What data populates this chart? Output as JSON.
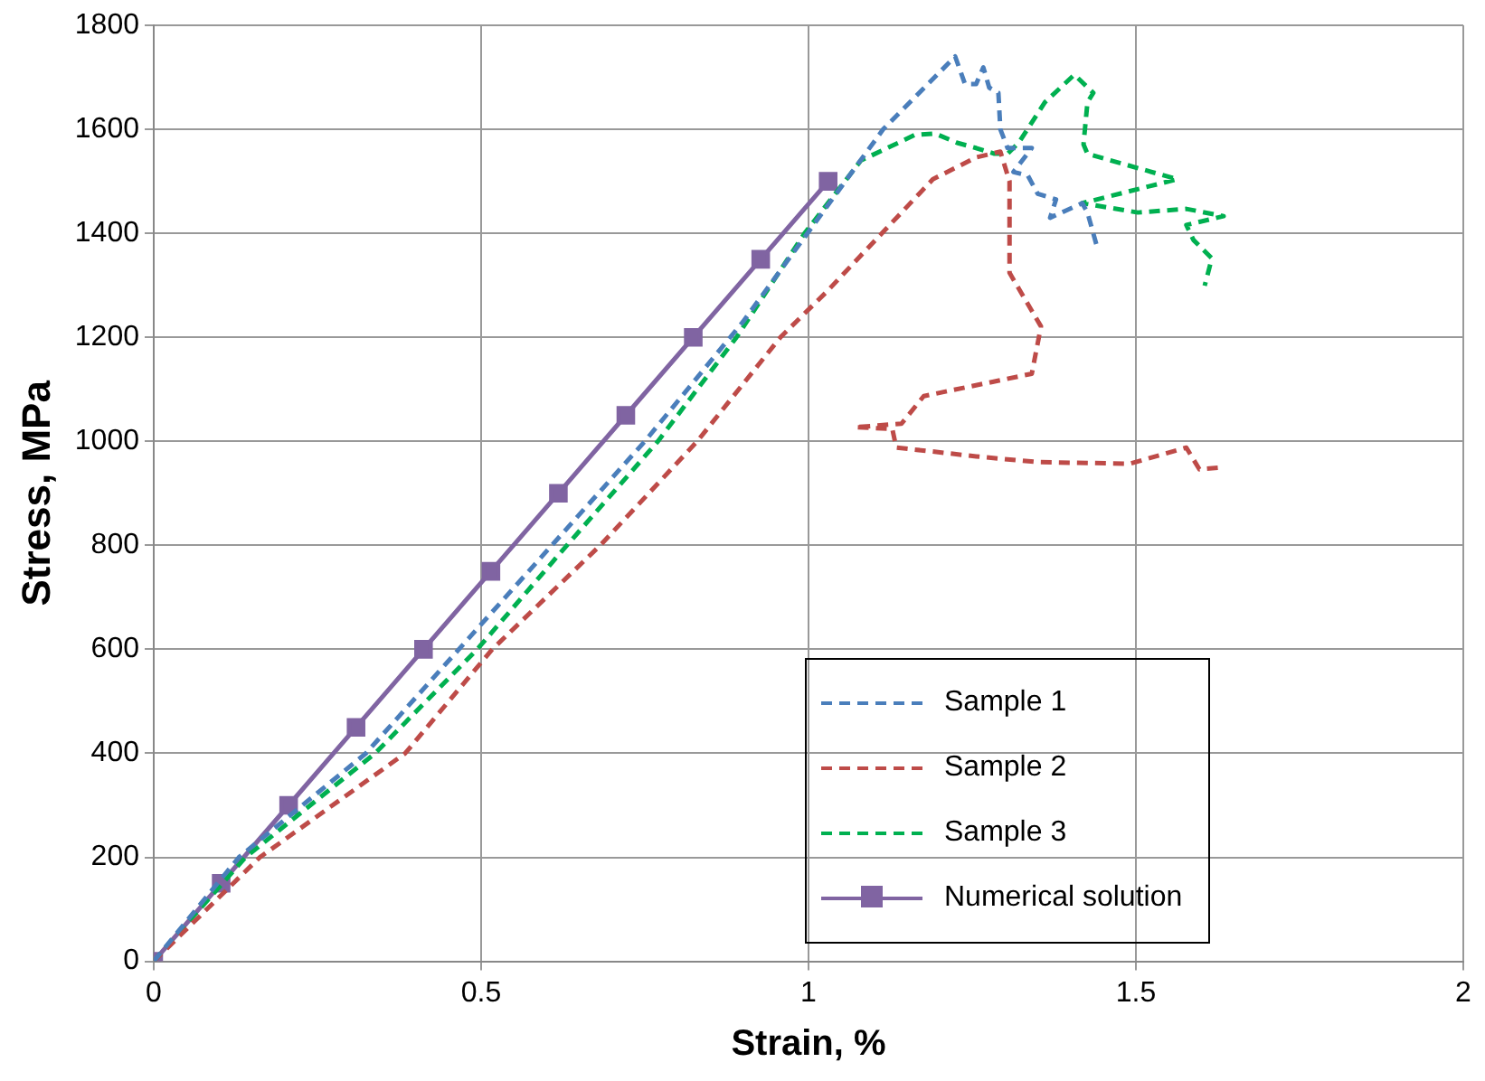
{
  "chart_data": {
    "type": "line",
    "xlabel": "Strain, %",
    "ylabel": "Stress, MPa",
    "xlim": [
      0,
      2
    ],
    "xticks": [
      0,
      0.5,
      1,
      1.5,
      2
    ],
    "ylim": [
      0,
      1800
    ],
    "yticks": [
      0,
      200,
      400,
      600,
      800,
      1000,
      1200,
      1400,
      1600,
      1800
    ],
    "grid": true,
    "legend": "bottom right",
    "series": [
      {
        "name": "Sample 1",
        "color": "#4a7ebb",
        "line_style": "dashed",
        "marker": "none",
        "x": [
          0,
          0.13,
          0.324,
          0.466,
          0.608,
          0.75,
          0.9,
          1.114,
          1.224,
          1.239,
          1.256,
          1.267,
          1.276,
          1.29,
          1.293,
          1.304,
          1.341,
          1.313,
          1.335,
          1.35,
          1.378,
          1.369,
          1.418,
          1.426,
          1.44
        ],
        "values": [
          0,
          200,
          400,
          600,
          800,
          1000,
          1230,
          1600,
          1740,
          1687,
          1687,
          1719,
          1680,
          1670,
          1600,
          1564,
          1564,
          1518,
          1511,
          1476,
          1465,
          1430,
          1458,
          1440,
          1377
        ]
      },
      {
        "name": "Sample 2",
        "color": "#be4b48",
        "line_style": "dashed",
        "marker": "none",
        "x": [
          0,
          0.162,
          0.384,
          0.517,
          0.682,
          0.83,
          0.957,
          1.028,
          1.19,
          1.256,
          1.293,
          1.307,
          1.307,
          1.355,
          1.341,
          1.176,
          1.142,
          1.071,
          1.128,
          1.134,
          1.185,
          1.256,
          1.35,
          1.491,
          1.577,
          1.597,
          1.634
        ],
        "values": [
          0,
          200,
          400,
          600,
          800,
          1000,
          1200,
          1288,
          1504,
          1546,
          1557,
          1500,
          1324,
          1221,
          1130,
          1087,
          1034,
          1027,
          1024,
          988,
          981,
          971,
          960,
          957,
          988,
          946,
          950
        ]
      },
      {
        "name": "Sample 3",
        "color": "#00b050",
        "line_style": "dashed",
        "marker": "none",
        "x": [
          0,
          0.14,
          0.338,
          0.494,
          0.631,
          0.77,
          0.89,
          0.994,
          1.08,
          1.162,
          1.193,
          1.227,
          1.256,
          1.284,
          1.304,
          1.321,
          1.361,
          1.406,
          1.435,
          1.426,
          1.42,
          1.426,
          1.563,
          1.418,
          1.503,
          1.577,
          1.634,
          1.577,
          1.588,
          1.616,
          1.605
        ],
        "values": [
          0,
          200,
          400,
          600,
          800,
          1000,
          1200,
          1400,
          1540,
          1589,
          1592,
          1574,
          1564,
          1553,
          1553,
          1574,
          1652,
          1705,
          1670,
          1652,
          1571,
          1553,
          1504,
          1458,
          1440,
          1447,
          1433,
          1416,
          1387,
          1352,
          1299
        ]
      },
      {
        "name": "Numerical solution",
        "color": "#8064a2",
        "line_style": "solid",
        "marker": "square",
        "x": [
          0,
          0.103,
          0.206,
          0.309,
          0.412,
          0.515,
          0.618,
          0.721,
          0.824,
          0.927,
          1.03
        ],
        "values": [
          0,
          150,
          300,
          450,
          600,
          750,
          900,
          1050,
          1200,
          1350,
          1500
        ]
      }
    ]
  }
}
